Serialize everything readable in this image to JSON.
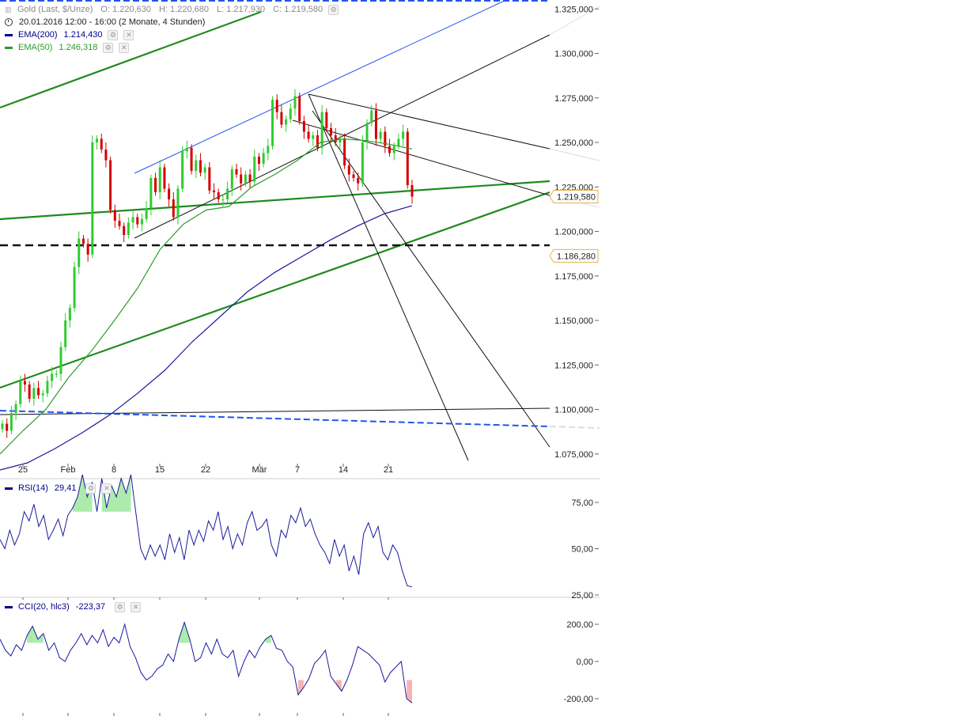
{
  "header": {
    "instrument": "Gold (Last, $/Unze)",
    "ohlc": {
      "open": "O: 1.220,630",
      "high": "H: 1.220,680",
      "low": "L: 1.217,930",
      "close": "C: 1.219,580"
    },
    "period": "20.01.2016 12:00 - 16:00 (2 Monate, 4 Stunden)",
    "indicators": [
      {
        "label": "EMA(200)",
        "value": "1.214,430",
        "color": "#00008b"
      },
      {
        "label": "EMA(50)",
        "value": "1.246,318",
        "color": "#2a9d2a"
      }
    ]
  },
  "colors": {
    "up_candle": "#2ecc2e",
    "down_candle": "#d40000",
    "ema200": "#1a1a9c",
    "ema50": "#2a9d2a",
    "trend_green": "#1f8a1f",
    "trend_blue": "#2255ee",
    "trend_black": "#111111",
    "price_marker_border": "#e3b34a",
    "rsi_fill": "#9ee79e",
    "cci_fill_neg": "#f4a6a6"
  },
  "chart_data": [
    {
      "type": "candlestick",
      "title": "Gold (Last, $/Unze)",
      "x_ticks": [
        "25",
        "Feb",
        "8",
        "15",
        "22",
        "Mär",
        "7",
        "14",
        "21"
      ],
      "y_ticks": [
        "1.325,000",
        "1.300,000",
        "1.275,000",
        "1.250,000",
        "1.225,000",
        "1.200,000",
        "1.175,000",
        "1.150,000",
        "1.125,000",
        "1.100,000",
        "1.075,000"
      ],
      "ylim": [
        1062,
        1330
      ],
      "price_labels": {
        "last": "1.219,580",
        "support": "1.186,280"
      },
      "horizontal_levels": [
        1186.28
      ],
      "session_closes": [
        1092,
        1088,
        1098,
        1103,
        1116,
        1114,
        1106,
        1112,
        1108,
        1109,
        1116,
        1120,
        1120,
        1135,
        1150,
        1157,
        1180,
        1196,
        1193,
        1187,
        1250,
        1252,
        1246,
        1240,
        1212,
        1206,
        1203,
        1198,
        1205,
        1208,
        1204,
        1207,
        1213,
        1230,
        1222,
        1236,
        1224,
        1218,
        1208,
        1224,
        1245,
        1247,
        1234,
        1240,
        1233,
        1236,
        1223,
        1222,
        1218,
        1218,
        1224,
        1235,
        1232,
        1227,
        1232,
        1228,
        1242,
        1238,
        1244,
        1248,
        1274,
        1267,
        1260,
        1263,
        1269,
        1276,
        1262,
        1256,
        1252,
        1254,
        1247,
        1267,
        1258,
        1254,
        1250,
        1252,
        1237,
        1232,
        1230,
        1227,
        1250,
        1261,
        1268,
        1252,
        1256,
        1248,
        1244,
        1248,
        1252,
        1256,
        1226,
        1219.58
      ],
      "ema50_values": [
        1075,
        1088,
        1100,
        1118,
        1133,
        1150,
        1168,
        1190,
        1204,
        1212,
        1214,
        1225,
        1232,
        1240,
        1250,
        1252,
        1251,
        1249,
        1246.3
      ],
      "ema200_values": [
        1066,
        1070,
        1078,
        1087,
        1097,
        1109,
        1122,
        1138,
        1152,
        1166,
        1177,
        1186,
        1195,
        1203,
        1210,
        1214.4
      ]
    },
    {
      "type": "line",
      "title": "RSI(14)",
      "value_label": "29,41",
      "y_ticks": [
        "75,00",
        "50,00",
        "25,00"
      ],
      "ylim": [
        25,
        95
      ],
      "values": [
        55,
        50,
        60,
        52,
        58,
        70,
        65,
        74,
        62,
        68,
        55,
        60,
        66,
        57,
        68,
        72,
        78,
        90,
        78,
        86,
        70,
        88,
        72,
        84,
        78,
        88,
        80,
        90,
        70,
        50,
        44,
        52,
        46,
        52,
        44,
        58,
        48,
        56,
        44,
        60,
        52,
        60,
        54,
        65,
        60,
        70,
        55,
        62,
        50,
        58,
        52,
        64,
        70,
        60,
        62,
        66,
        52,
        46,
        60,
        56,
        68,
        64,
        72,
        62,
        66,
        58,
        52,
        48,
        42,
        55,
        46,
        52,
        38,
        46,
        36,
        58,
        64,
        56,
        62,
        48,
        44,
        52,
        48,
        38,
        30,
        29.41
      ]
    },
    {
      "type": "line",
      "title": "CCI(20, hlc3)",
      "value_label": "-223,37",
      "y_ticks": [
        "200,00",
        "0,00",
        "-200,00"
      ],
      "ylim": [
        -240,
        300
      ],
      "values": [
        120,
        60,
        30,
        90,
        60,
        140,
        190,
        120,
        150,
        60,
        100,
        20,
        0,
        60,
        100,
        150,
        90,
        140,
        100,
        170,
        80,
        130,
        100,
        200,
        80,
        20,
        -60,
        -100,
        -80,
        -40,
        -20,
        40,
        0,
        120,
        210,
        120,
        0,
        20,
        100,
        40,
        120,
        40,
        20,
        60,
        -80,
        0,
        60,
        20,
        80,
        120,
        140,
        70,
        60,
        0,
        -30,
        -180,
        -140,
        -90,
        -10,
        20,
        60,
        -80,
        -120,
        -160,
        -100,
        -20,
        80,
        60,
        40,
        10,
        -20,
        -110,
        -60,
        -30,
        0,
        -200,
        -223.37
      ]
    }
  ]
}
